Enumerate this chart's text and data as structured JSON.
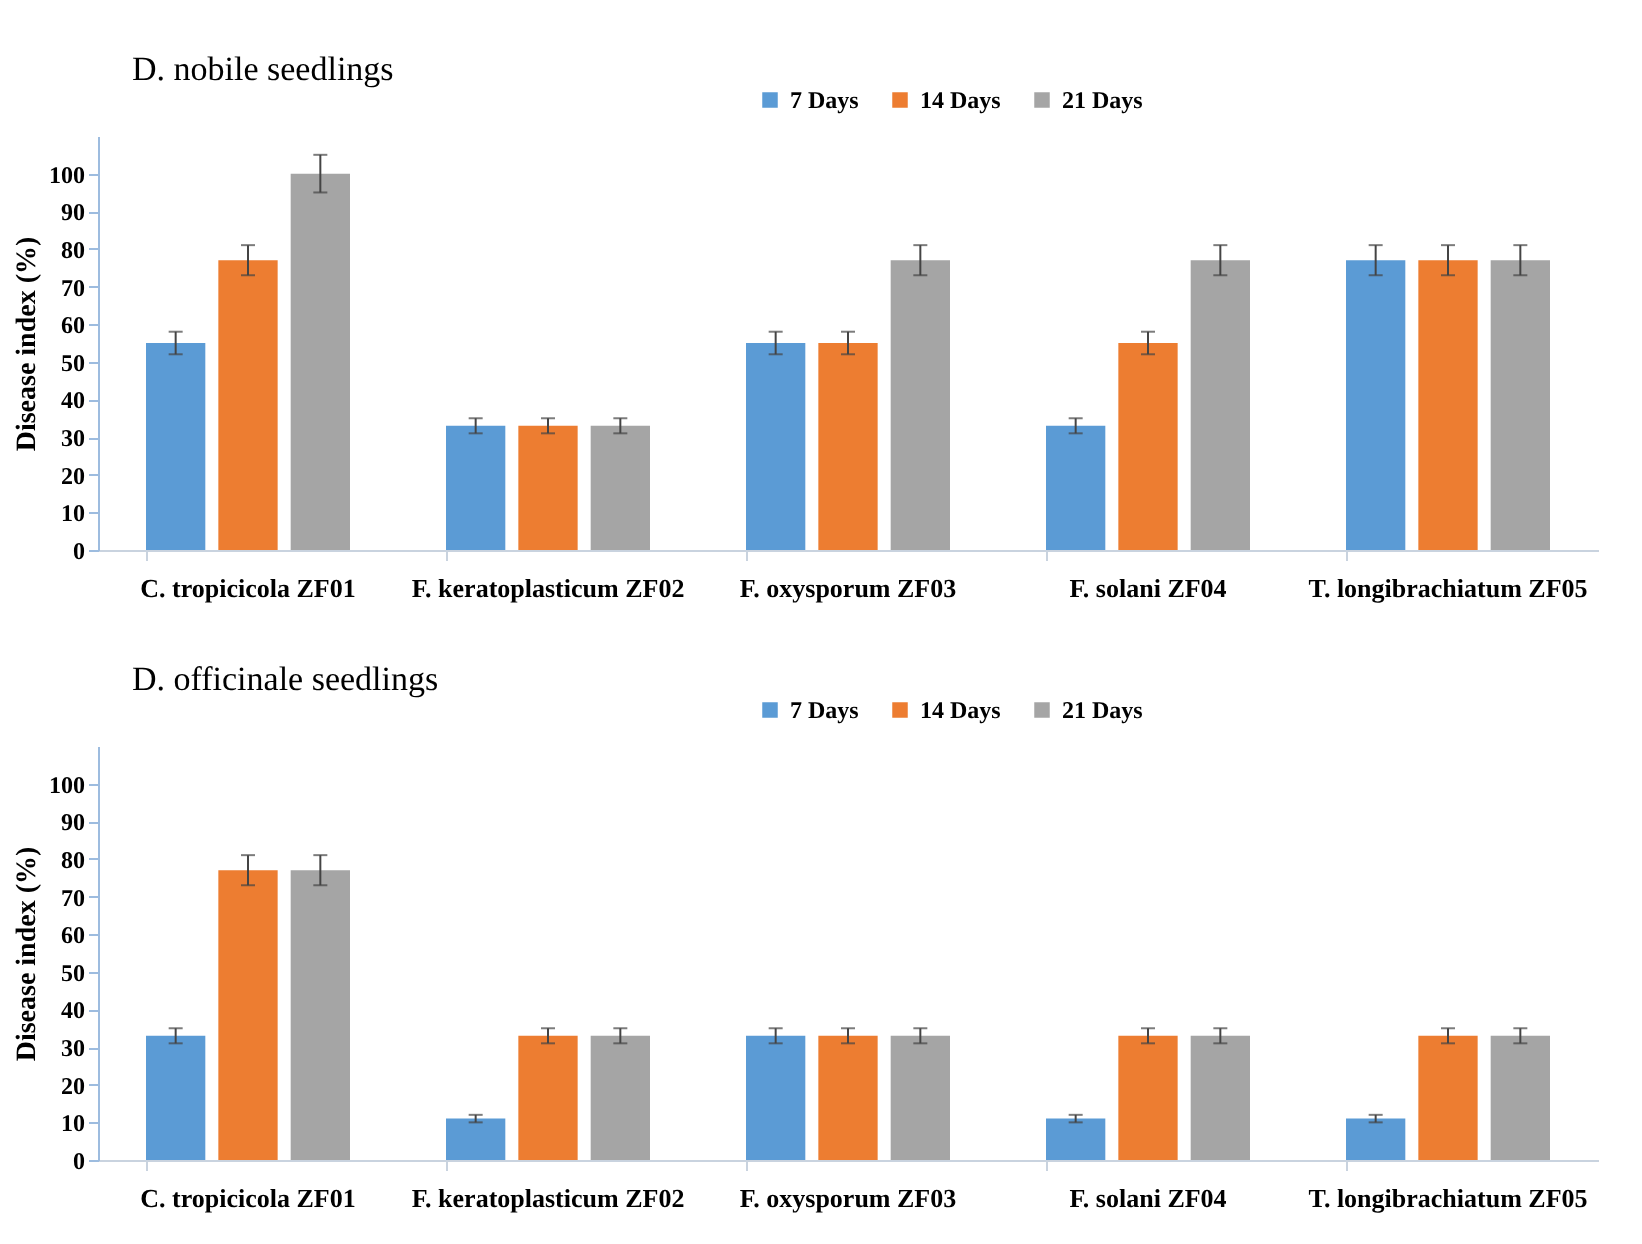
{
  "chart_data": [
    {
      "type": "bar",
      "title": "D. nobile seedlings",
      "ylabel": "Disease index (%)",
      "categories": [
        "C. tropicicola ZF01",
        "F. keratoplasticum ZF02",
        "F. oxysporum ZF03",
        "F. solani ZF04",
        "T. longibrachiatum ZF05"
      ],
      "series": [
        {
          "name": "7 Days",
          "color": "#5b9bd5",
          "values": [
            55,
            33,
            55,
            33,
            77
          ],
          "errors": [
            3,
            2,
            3,
            2,
            4
          ]
        },
        {
          "name": "14 Days",
          "color": "#ed7d31",
          "values": [
            77,
            33,
            55,
            55,
            77
          ],
          "errors": [
            4,
            2,
            3,
            3,
            4
          ]
        },
        {
          "name": "21 Days",
          "color": "#a5a5a5",
          "values": [
            100,
            33,
            77,
            77,
            77
          ],
          "errors": [
            5,
            2,
            4,
            4,
            4
          ]
        }
      ],
      "ylim": [
        0,
        110
      ],
      "yticks": [
        0,
        10,
        20,
        30,
        40,
        50,
        60,
        70,
        80,
        90,
        100
      ],
      "grid": false,
      "legend": "top"
    },
    {
      "type": "bar",
      "title": "D. officinale seedlings",
      "ylabel": "Disease index (%)",
      "categories": [
        "C. tropicicola ZF01",
        "F. keratoplasticum ZF02",
        "F. oxysporum ZF03",
        "F. solani ZF04",
        "T. longibrachiatum ZF05"
      ],
      "series": [
        {
          "name": "7 Days",
          "color": "#5b9bd5",
          "values": [
            33,
            11,
            33,
            11,
            11
          ],
          "errors": [
            2,
            1,
            2,
            1,
            1
          ]
        },
        {
          "name": "14 Days",
          "color": "#ed7d31",
          "values": [
            77,
            33,
            33,
            33,
            33
          ],
          "errors": [
            4,
            2,
            2,
            2,
            2
          ]
        },
        {
          "name": "21 Days",
          "color": "#a5a5a5",
          "values": [
            77,
            33,
            33,
            33,
            33
          ],
          "errors": [
            4,
            2,
            2,
            2,
            2
          ]
        }
      ],
      "ylim": [
        0,
        110
      ],
      "yticks": [
        0,
        10,
        20,
        30,
        40,
        50,
        60,
        70,
        80,
        90,
        100
      ],
      "grid": false,
      "legend": "top"
    }
  ]
}
